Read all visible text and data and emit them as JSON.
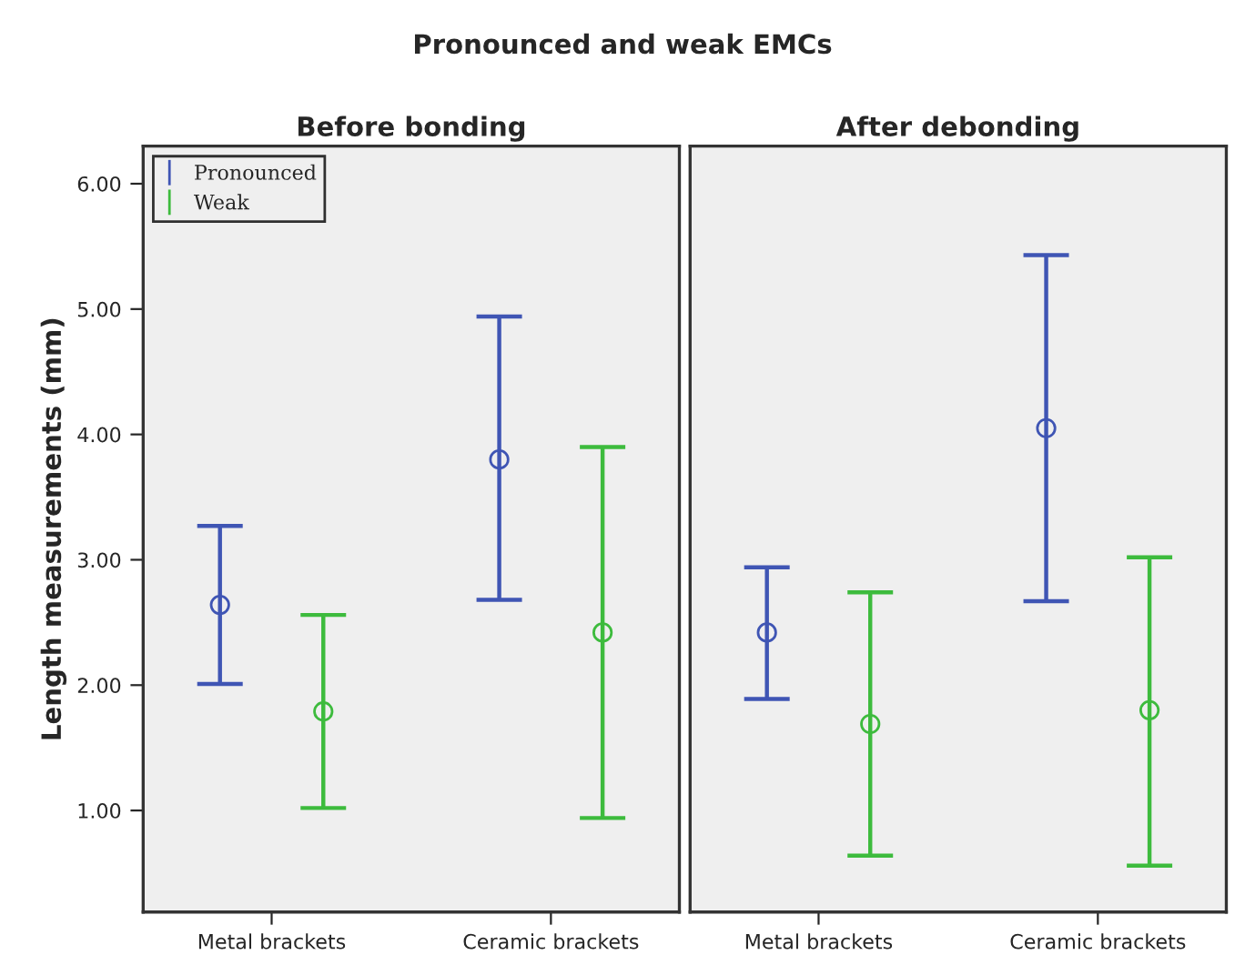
{
  "chart_data": [
    {
      "type": "scatter",
      "title": "Before bonding",
      "ylabel": "Length measurements (mm)",
      "annotations": [
        "Pronounced and weak EMCs"
      ],
      "categories": [
        "Metal brackets",
        "Ceramic brackets"
      ],
      "series": [
        {
          "name": "Pronounced",
          "color": "#3f55b4",
          "values": [
            2.64,
            3.8
          ],
          "errors": [
            [
              2.01,
              3.27
            ],
            [
              2.68,
              4.94
            ]
          ]
        },
        {
          "name": "Weak",
          "color": "#3dbb3d",
          "values": [
            1.79,
            2.42
          ],
          "errors": [
            [
              1.02,
              2.56
            ],
            [
              0.94,
              3.9
            ]
          ]
        }
      ],
      "ylim": [
        0.19,
        6.3
      ],
      "yticks": [
        {
          "value": 1,
          "label": "1.00"
        },
        {
          "value": 2,
          "label": "2.00"
        },
        {
          "value": 3,
          "label": "3.00"
        },
        {
          "value": 4,
          "label": "4.00"
        },
        {
          "value": 5,
          "label": "5.00"
        },
        {
          "value": 6,
          "label": "6.00"
        }
      ],
      "marker": "circle",
      "grid": false,
      "legend": "top left"
    },
    {
      "type": "scatter",
      "title": "After debonding",
      "categories": [
        "Metal brackets",
        "Ceramic brackets"
      ],
      "series": [
        {
          "color": "#3f55b4",
          "values": [
            2.42,
            4.05
          ],
          "errors": [
            [
              1.89,
              2.94
            ],
            [
              2.67,
              5.43
            ]
          ]
        },
        {
          "color": "#3dbb3d",
          "values": [
            1.69,
            1.8
          ],
          "errors": [
            [
              0.64,
              2.74
            ],
            [
              0.56,
              3.02
            ]
          ]
        }
      ],
      "ylim": [
        0.19,
        6.3
      ],
      "tick_labels": "x",
      "marker": "circle",
      "grid": false
    }
  ]
}
